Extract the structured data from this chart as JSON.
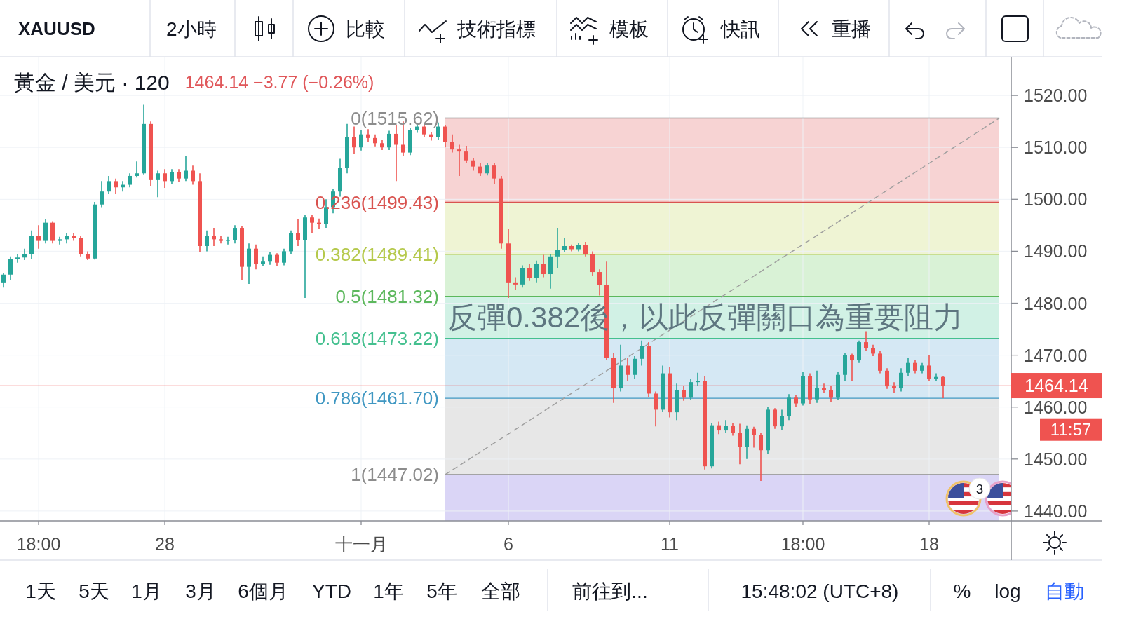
{
  "chart_data": {
    "type": "candlestick",
    "title": "黃金 / 美元 · 120",
    "subtitle": "1464.14 −3.77 (−0.26%)",
    "categories": [
      null,
      null,
      null,
      null,
      null,
      "18:00",
      null,
      null,
      null,
      null,
      null,
      null,
      null,
      null,
      null,
      null,
      null,
      null,
      null,
      null,
      null,
      null,
      null,
      "28",
      null,
      null,
      null,
      null,
      null,
      null,
      null,
      null,
      null,
      null,
      null,
      null,
      null,
      null,
      null,
      null,
      null,
      null,
      null,
      null,
      null,
      null,
      null,
      null,
      null,
      null,
      null,
      "十一月",
      null,
      null,
      null,
      null,
      null,
      null,
      null,
      null,
      null,
      null,
      null,
      null,
      null,
      null,
      null,
      null,
      null,
      null,
      null,
      null,
      "6",
      null,
      null,
      null,
      null,
      null,
      null,
      null,
      null,
      null,
      null,
      null,
      null,
      null,
      null,
      null,
      null,
      null,
      null,
      null,
      null,
      null,
      null,
      "11",
      null,
      null,
      null,
      null,
      null,
      null,
      null,
      null,
      null,
      null,
      null,
      null,
      null,
      null,
      null,
      null,
      null,
      null,
      "18:00",
      null,
      null,
      null,
      null,
      null,
      null,
      null,
      null,
      null,
      null,
      null,
      null,
      null,
      null,
      null,
      null,
      null,
      "18",
      null,
      null,
      null,
      null,
      null,
      null,
      null,
      null,
      null,
      null
    ],
    "ohlc": [
      [
        1484.0,
        1485.8,
        1483.0,
        1485.5
      ],
      [
        1485.5,
        1489.0,
        1484.5,
        1488.5
      ],
      [
        1488.5,
        1489.5,
        1487.8,
        1488.8
      ],
      [
        1488.8,
        1490.5,
        1488.3,
        1489.5
      ],
      [
        1489.5,
        1494.0,
        1488.5,
        1493.0
      ],
      [
        1493.0,
        1495.0,
        1490.5,
        1492.0
      ],
      [
        1492.0,
        1496.2,
        1491.5,
        1495.5
      ],
      [
        1495.5,
        1495.8,
        1491.5,
        1492.0
      ],
      [
        1492.0,
        1492.8,
        1491.3,
        1492.3
      ],
      [
        1492.3,
        1493.5,
        1491.5,
        1493.0
      ],
      [
        1493.0,
        1493.5,
        1492.0,
        1492.5
      ],
      [
        1492.5,
        1493.0,
        1489.0,
        1489.5
      ],
      [
        1489.5,
        1490.0,
        1488.3,
        1488.6
      ],
      [
        1488.6,
        1499.5,
        1488.4,
        1499.0
      ],
      [
        1499.0,
        1503.5,
        1498.5,
        1501.5
      ],
      [
        1501.5,
        1504.5,
        1501.0,
        1503.5
      ],
      [
        1503.5,
        1504.0,
        1501.0,
        1502.3
      ],
      [
        1502.3,
        1503.5,
        1501.5,
        1502.8
      ],
      [
        1502.8,
        1505.0,
        1502.3,
        1504.5
      ],
      [
        1504.5,
        1507.3,
        1504.2,
        1505.0
      ],
      [
        1505.0,
        1518.2,
        1504.8,
        1514.5
      ],
      [
        1514.5,
        1515.0,
        1502.5,
        1503.7
      ],
      [
        1503.7,
        1505.5,
        1500.4,
        1505.0
      ],
      [
        1505.0,
        1505.8,
        1502.2,
        1503.5
      ],
      [
        1503.5,
        1505.8,
        1503.0,
        1505.3
      ],
      [
        1505.3,
        1505.8,
        1503.3,
        1504.0
      ],
      [
        1504.0,
        1508.3,
        1503.5,
        1505.5
      ],
      [
        1505.5,
        1506.5,
        1502.8,
        1503.5
      ],
      [
        1503.5,
        1505.0,
        1489.8,
        1491.0
      ],
      [
        1491.0,
        1494.0,
        1490.0,
        1493.0
      ],
      [
        1493.0,
        1494.5,
        1491.0,
        1492.3
      ],
      [
        1492.3,
        1493.0,
        1491.5,
        1492.0
      ],
      [
        1492.0,
        1492.8,
        1491.3,
        1492.2
      ],
      [
        1492.2,
        1495.0,
        1491.5,
        1494.5
      ],
      [
        1494.5,
        1494.8,
        1484.5,
        1487.0
      ],
      [
        1487.0,
        1491.5,
        1483.7,
        1490.5
      ],
      [
        1490.5,
        1491.3,
        1486.5,
        1487.5
      ],
      [
        1487.5,
        1489.0,
        1487.2,
        1488.0
      ],
      [
        1488.0,
        1489.8,
        1487.4,
        1489.3
      ],
      [
        1489.3,
        1489.6,
        1487.2,
        1487.8
      ],
      [
        1487.8,
        1490.5,
        1487.3,
        1490.0
      ],
      [
        1490.0,
        1494.0,
        1489.5,
        1493.5
      ],
      [
        1493.5,
        1496.2,
        1491.0,
        1492.2
      ],
      [
        1492.2,
        1497.0,
        1481.0,
        1496.5
      ],
      [
        1496.5,
        1497.0,
        1493.5,
        1495.5
      ],
      [
        1495.5,
        1496.3,
        1494.3,
        1495.3
      ],
      [
        1495.3,
        1500.0,
        1494.5,
        1498.5
      ],
      [
        1498.5,
        1502.0,
        1497.3,
        1501.5
      ],
      [
        1501.5,
        1507.8,
        1500.5,
        1506.0
      ],
      [
        1506.0,
        1514.5,
        1505.0,
        1512.0
      ],
      [
        1512.0,
        1514.0,
        1508.8,
        1510.0
      ],
      [
        1510.0,
        1513.3,
        1509.4,
        1512.5
      ],
      [
        1512.5,
        1513.5,
        1511.0,
        1511.8
      ],
      [
        1511.8,
        1512.5,
        1510.2,
        1510.8
      ],
      [
        1510.8,
        1511.5,
        1509.5,
        1510.0
      ],
      [
        1510.0,
        1513.2,
        1509.5,
        1512.6
      ],
      [
        1512.6,
        1514.2,
        1503.5,
        1510.5
      ],
      [
        1510.5,
        1515.0,
        1508.3,
        1509.0
      ],
      [
        1509.0,
        1513.8,
        1508.5,
        1513.3
      ],
      [
        1513.3,
        1514.7,
        1512.8,
        1514.0
      ],
      [
        1514.0,
        1514.5,
        1512.0,
        1512.5
      ],
      [
        1512.5,
        1513.0,
        1511.3,
        1512.0
      ],
      [
        1512.0,
        1514.8,
        1511.5,
        1514.0
      ],
      [
        1514.0,
        1514.3,
        1510.0,
        1511.0
      ],
      [
        1511.0,
        1512.5,
        1509.0,
        1509.6
      ],
      [
        1509.6,
        1510.5,
        1504.5,
        1509.2
      ],
      [
        1509.2,
        1510.3,
        1507.0,
        1507.5
      ],
      [
        1507.5,
        1508.0,
        1505.5,
        1506.3
      ],
      [
        1506.3,
        1507.0,
        1504.5,
        1505.0
      ],
      [
        1505.0,
        1507.0,
        1504.6,
        1506.5
      ],
      [
        1506.5,
        1507.0,
        1503.0,
        1504.0
      ],
      [
        1504.0,
        1504.5,
        1490.5,
        1491.5
      ],
      [
        1491.5,
        1494.3,
        1481.0,
        1484.0
      ],
      [
        1484.0,
        1485.0,
        1482.5,
        1483.6
      ],
      [
        1483.6,
        1487.3,
        1483.0,
        1486.8
      ],
      [
        1486.8,
        1487.5,
        1484.3,
        1484.8
      ],
      [
        1484.8,
        1488.2,
        1484.0,
        1487.6
      ],
      [
        1487.6,
        1489.3,
        1485.0,
        1485.6
      ],
      [
        1485.6,
        1489.5,
        1482.8,
        1489.0
      ],
      [
        1489.0,
        1494.5,
        1486.8,
        1490.3
      ],
      [
        1490.3,
        1492.5,
        1489.8,
        1491.0
      ],
      [
        1491.0,
        1491.3,
        1490.0,
        1490.4
      ],
      [
        1490.4,
        1491.6,
        1490.0,
        1491.2
      ],
      [
        1491.2,
        1491.8,
        1489.0,
        1489.5
      ],
      [
        1489.5,
        1490.0,
        1485.3,
        1486.0
      ],
      [
        1486.0,
        1486.5,
        1481.5,
        1483.5
      ],
      [
        1483.5,
        1488.0,
        1469.0,
        1469.5
      ],
      [
        1469.5,
        1470.5,
        1460.8,
        1463.6
      ],
      [
        1463.6,
        1472.0,
        1463.0,
        1468.0
      ],
      [
        1468.0,
        1469.5,
        1465.0,
        1466.2
      ],
      [
        1466.2,
        1469.8,
        1465.5,
        1469.3
      ],
      [
        1469.3,
        1472.8,
        1468.0,
        1471.8
      ],
      [
        1471.8,
        1472.5,
        1462.0,
        1462.6
      ],
      [
        1462.6,
        1463.0,
        1456.3,
        1459.5
      ],
      [
        1459.5,
        1468.0,
        1459.0,
        1466.5
      ],
      [
        1466.5,
        1467.8,
        1458.0,
        1459.0
      ],
      [
        1459.0,
        1464.5,
        1457.5,
        1463.3
      ],
      [
        1463.3,
        1464.0,
        1461.2,
        1461.8
      ],
      [
        1461.8,
        1465.5,
        1461.3,
        1464.8
      ],
      [
        1464.8,
        1466.6,
        1464.0,
        1465.0
      ],
      [
        1465.0,
        1466.0,
        1448.0,
        1448.6
      ],
      [
        1448.6,
        1457.0,
        1448.2,
        1456.5
      ],
      [
        1456.5,
        1457.2,
        1454.8,
        1455.5
      ],
      [
        1455.5,
        1457.5,
        1455.0,
        1456.4
      ],
      [
        1456.4,
        1457.0,
        1454.5,
        1455.0
      ],
      [
        1455.0,
        1456.8,
        1449.0,
        1452.3
      ],
      [
        1452.3,
        1456.5,
        1450.0,
        1455.8
      ],
      [
        1455.8,
        1456.2,
        1452.2,
        1454.6
      ],
      [
        1454.6,
        1455.0,
        1445.8,
        1451.7
      ],
      [
        1451.7,
        1460.0,
        1451.0,
        1459.5
      ],
      [
        1459.5,
        1459.8,
        1455.8,
        1456.3
      ],
      [
        1456.3,
        1459.5,
        1455.5,
        1458.3
      ],
      [
        1458.3,
        1462.5,
        1457.5,
        1461.8
      ],
      [
        1461.8,
        1462.3,
        1460.0,
        1460.7
      ],
      [
        1460.7,
        1466.8,
        1460.3,
        1466.0
      ],
      [
        1466.0,
        1466.5,
        1460.5,
        1461.5
      ],
      [
        1461.5,
        1467.0,
        1460.8,
        1463.6
      ],
      [
        1463.6,
        1464.5,
        1462.8,
        1463.3
      ],
      [
        1463.3,
        1464.0,
        1461.0,
        1461.8
      ],
      [
        1461.8,
        1466.8,
        1461.3,
        1466.2
      ],
      [
        1466.2,
        1470.5,
        1465.0,
        1470.0
      ],
      [
        1470.0,
        1470.3,
        1465.0,
        1469.0
      ],
      [
        1469.0,
        1472.8,
        1468.5,
        1472.5
      ],
      [
        1472.5,
        1474.6,
        1470.8,
        1471.3
      ],
      [
        1471.3,
        1472.0,
        1469.8,
        1470.3
      ],
      [
        1470.3,
        1470.8,
        1466.5,
        1467.0
      ],
      [
        1467.0,
        1467.5,
        1463.5,
        1464.0
      ],
      [
        1464.0,
        1464.8,
        1462.8,
        1463.6
      ],
      [
        1463.6,
        1467.5,
        1463.0,
        1466.6
      ],
      [
        1466.6,
        1469.5,
        1466.0,
        1468.5
      ],
      [
        1468.5,
        1469.0,
        1466.5,
        1467.0
      ],
      [
        1467.0,
        1468.5,
        1466.5,
        1468.0
      ],
      [
        1468.0,
        1470.0,
        1465.0,
        1465.5
      ],
      [
        1465.5,
        1466.5,
        1465.0,
        1465.8
      ],
      [
        1465.8,
        1466.0,
        1461.7,
        1464.14
      ],
      null,
      null,
      null,
      null,
      null,
      null,
      null,
      null
    ],
    "colors": [
      "#26a69a",
      "#26a69a",
      "#26a69a",
      "#26a69a",
      "#26a69a",
      "#ef5350",
      "#26a69a",
      "#ef5350",
      "#26a69a",
      "#26a69a",
      "#ef5350",
      "#ef5350",
      "#ef5350",
      "#26a69a",
      "#26a69a",
      "#26a69a",
      "#ef5350",
      "#26a69a",
      "#26a69a",
      "#26a69a",
      "#26a69a",
      "#ef5350",
      "#26a69a",
      "#ef5350",
      "#26a69a",
      "#ef5350",
      "#26a69a",
      "#ef5350",
      "#ef5350",
      "#26a69a",
      "#ef5350",
      "#ef5350",
      "#26a69a",
      "#26a69a",
      "#ef5350",
      "#26a69a",
      "#ef5350",
      "#26a69a",
      "#26a69a",
      "#ef5350",
      "#26a69a",
      "#26a69a",
      "#ef5350",
      "#26a69a",
      "#ef5350",
      "#ef5350",
      "#26a69a",
      "#26a69a",
      "#26a69a",
      "#26a69a",
      "#ef5350",
      "#26a69a",
      "#ef5350",
      "#ef5350",
      "#ef5350",
      "#26a69a",
      "#ef5350",
      "#ef5350",
      "#26a69a",
      "#26a69a",
      "#ef5350",
      "#ef5350",
      "#26a69a",
      "#ef5350",
      "#ef5350",
      "#ef5350",
      "#ef5350",
      "#ef5350",
      "#ef5350",
      "#26a69a",
      "#ef5350",
      "#ef5350",
      "#ef5350",
      "#ef5350",
      "#26a69a",
      "#ef5350",
      "#26a69a",
      "#ef5350",
      "#26a69a",
      "#26a69a",
      "#26a69a",
      "#ef5350",
      "#26a69a",
      "#ef5350",
      "#ef5350",
      "#ef5350",
      "#ef5350",
      "#ef5350",
      "#26a69a",
      "#ef5350",
      "#26a69a",
      "#26a69a",
      "#ef5350",
      "#ef5350",
      "#26a69a",
      "#ef5350",
      "#26a69a",
      "#ef5350",
      "#26a69a",
      "#26a69a",
      "#ef5350",
      "#26a69a",
      "#ef5350",
      "#26a69a",
      "#ef5350",
      "#ef5350",
      "#26a69a",
      "#ef5350",
      "#ef5350",
      "#26a69a",
      "#ef5350",
      "#26a69a",
      "#26a69a",
      "#ef5350",
      "#26a69a",
      "#ef5350",
      "#26a69a",
      "#ef5350",
      "#ef5350",
      "#26a69a",
      "#26a69a",
      "#ef5350",
      "#26a69a",
      "#ef5350",
      "#ef5350",
      "#ef5350",
      "#ef5350",
      "#ef5350",
      "#26a69a",
      "#26a69a",
      "#ef5350",
      "#26a69a",
      "#ef5350",
      "#26a69a",
      "#ef5350",
      null,
      null,
      null,
      null,
      null,
      null,
      null,
      null
    ],
    "series": [
      {
        "type": "line",
        "color": "#9e9e9e",
        "line_style": "dashed",
        "values": [
          null,
          null,
          null,
          null,
          null,
          null,
          null,
          null,
          null,
          null,
          null,
          null,
          null,
          null,
          null,
          null,
          null,
          null,
          null,
          null,
          null,
          null,
          null,
          null,
          null,
          null,
          null,
          null,
          null,
          null,
          null,
          null,
          null,
          null,
          null,
          null,
          null,
          null,
          null,
          null,
          null,
          null,
          null,
          null,
          null,
          null,
          null,
          null,
          null,
          null,
          null,
          null,
          null,
          null,
          null,
          null,
          null,
          null,
          null,
          null,
          null,
          null,
          null,
          1447.02,
          null,
          null,
          null,
          null,
          null,
          null,
          null,
          null,
          null,
          null,
          null,
          null,
          null,
          null,
          null,
          null,
          null,
          null,
          null,
          null,
          null,
          null,
          null,
          null,
          null,
          null,
          null,
          null,
          null,
          null,
          null,
          null,
          null,
          null,
          null,
          null,
          null,
          null,
          null,
          null,
          null,
          null,
          null,
          null,
          null,
          null,
          null,
          null,
          null,
          null,
          null,
          null,
          null,
          null,
          null,
          null,
          null,
          null,
          null,
          null,
          null,
          null,
          null,
          null,
          null,
          null,
          null,
          null,
          null,
          null,
          null,
          null,
          null,
          null,
          null,
          null,
          null,
          null,
          1515.62
        ]
      }
    ],
    "ylim": [
      1438.1,
      1527.3
    ],
    "yticks": [
      {
        "value": 1440,
        "label": "1440.00"
      },
      {
        "value": 1450,
        "label": "1450.00"
      },
      {
        "value": 1460,
        "label": "1460.00"
      },
      {
        "value": 1470,
        "label": "1470.00"
      },
      {
        "value": 1480,
        "label": "1480.00"
      },
      {
        "value": 1490,
        "label": "1490.00"
      },
      {
        "value": 1500,
        "label": "1500.00"
      },
      {
        "value": 1510,
        "label": "1510.00"
      },
      {
        "value": 1520,
        "label": "1520.00"
      }
    ],
    "grid": true,
    "ref_lines": [
      {
        "axis": "y",
        "value": 1464.14,
        "label": "1464.14",
        "color": "#ef5350"
      },
      {
        "axis": "y",
        "value": 1515.62,
        "label": "0(1515.62)",
        "color": "#8c8c8c"
      },
      {
        "axis": "y",
        "value": 1499.43,
        "label": "0.236(1499.43)",
        "color": "#d9534f"
      },
      {
        "axis": "y",
        "value": 1489.41,
        "label": "0.382(1489.41)",
        "color": "#b5c94c"
      },
      {
        "axis": "y",
        "value": 1481.32,
        "label": "0.5(1481.32)",
        "color": "#5cb85c"
      },
      {
        "axis": "y",
        "value": 1473.22,
        "label": "0.618(1473.22)",
        "color": "#44c08f"
      },
      {
        "axis": "y",
        "value": 1461.7,
        "label": "0.786(1461.70)",
        "color": "#3f97c2"
      },
      {
        "axis": "y",
        "value": 1447.02,
        "label": "1(1447.02)",
        "color": "#8c8c8c"
      }
    ],
    "bands": [
      {
        "axis": "y",
        "from": 1515.62,
        "to": 1499.43,
        "color": "#f7d3d3"
      },
      {
        "axis": "y",
        "from": 1499.43,
        "to": 1489.41,
        "color": "#eff4d4"
      },
      {
        "axis": "y",
        "from": 1489.41,
        "to": 1481.32,
        "color": "#d9f2d6"
      },
      {
        "axis": "y",
        "from": 1481.32,
        "to": 1473.22,
        "color": "#d1f1e5"
      },
      {
        "axis": "y",
        "from": 1473.22,
        "to": 1461.7,
        "color": "#d5e8f4"
      },
      {
        "axis": "y",
        "from": 1461.7,
        "to": 1447.02,
        "color": "#e7e7e7"
      },
      {
        "axis": "y",
        "from": 1447.02,
        "to": 1438.1,
        "color": "#dad5f6"
      }
    ],
    "annotations": [
      "XAUUSD",
      "2小時",
      "比較",
      "技術指標",
      "模板",
      "快訊",
      "重播",
      "反彈0.382後，以此反彈關口為重要阻力",
      "3",
      "11:57",
      "1天",
      "5天",
      "1月",
      "3月",
      "6個月",
      "YTD",
      "1年",
      "5年",
      "全部",
      "前往到...",
      "15:48:02 (UTC+8)",
      "%",
      "log",
      "自動"
    ]
  }
}
